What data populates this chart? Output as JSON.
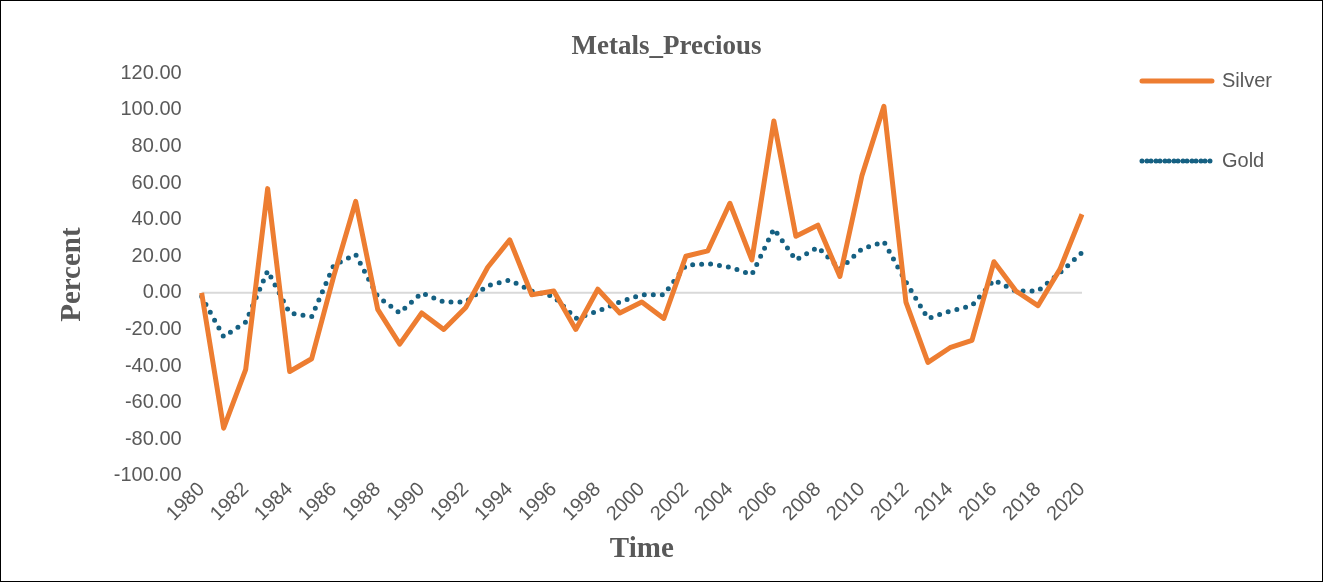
{
  "chart_data": {
    "type": "line",
    "title": "Metals_Precious",
    "xlabel": "Time",
    "ylabel": "Percent",
    "categories": [
      "1980",
      null,
      "1982",
      null,
      "1984",
      null,
      "1986",
      null,
      "1988",
      null,
      "1990",
      null,
      "1992",
      null,
      "1994",
      null,
      "1996",
      null,
      "1998",
      null,
      "2000",
      null,
      "2002",
      null,
      "2004",
      null,
      "2006",
      null,
      "2008",
      null,
      "2010",
      null,
      "2012",
      null,
      "2014",
      null,
      "2016",
      null,
      "2018",
      null,
      "2020"
    ],
    "series": [
      {
        "name": "Silver",
        "color": "#ed7d31",
        "line_style": "solid",
        "values": [
          0,
          -74,
          -42,
          57,
          -43,
          -36,
          9,
          50,
          -9,
          -28,
          -11,
          -20,
          -8,
          14,
          29,
          -1,
          1,
          -20,
          2,
          -11,
          -5,
          -14,
          20,
          23,
          49,
          18,
          94,
          31,
          37,
          9,
          64,
          102,
          -5,
          -38,
          -30,
          -26,
          17,
          1,
          -7,
          13,
          43
        ]
      },
      {
        "name": "Gold",
        "color": "#156082",
        "line_style": "dotted",
        "values": [
          -2,
          -24,
          -16,
          12,
          -11,
          -13,
          15,
          21,
          -2,
          -11,
          0,
          -5,
          -5,
          4,
          7,
          1,
          -2,
          -14,
          -10,
          -5,
          -1,
          -1,
          15,
          16,
          14,
          10,
          35,
          18,
          25,
          13,
          24,
          28,
          6,
          -14,
          -10,
          -7,
          7,
          1,
          1,
          11,
          22
        ]
      }
    ],
    "ylim": [
      -100,
      120
    ],
    "yticks": [
      {
        "value": -100,
        "label": "-100.00"
      },
      {
        "value": -80,
        "label": "-80.00"
      },
      {
        "value": -60,
        "label": "-60.00"
      },
      {
        "value": -40,
        "label": "-40.00"
      },
      {
        "value": -20,
        "label": "-20.00"
      },
      {
        "value": 0,
        "label": "0.00"
      },
      {
        "value": 20,
        "label": "20.00"
      },
      {
        "value": 40,
        "label": "40.00"
      },
      {
        "value": 60,
        "label": "60.00"
      },
      {
        "value": 80,
        "label": "80.00"
      },
      {
        "value": 100,
        "label": "100.00"
      },
      {
        "value": 120,
        "label": "120.00"
      }
    ],
    "ref_lines": [
      {
        "axis": "y",
        "value": 0,
        "color": "#d9d9d9"
      }
    ],
    "grid": false,
    "legend": "top right",
    "marker": "none"
  }
}
